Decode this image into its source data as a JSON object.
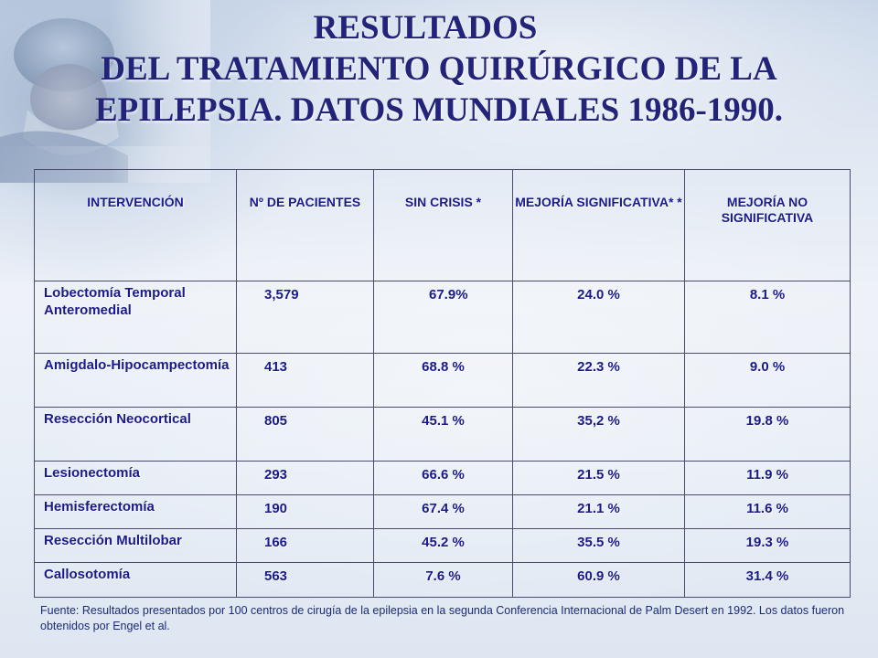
{
  "title": {
    "line1": "RESULTADOS",
    "line2": "DEL TRATAMIENTO QUIRÚRGICO DE LA",
    "line3": "EPILEPSIA. DATOS MUNDIALES 1986-1990."
  },
  "table": {
    "headers": [
      "INTERVENCIÓN",
      "Nº  DE PACIENTES",
      "SIN CRISIS *",
      "MEJORÍA SIGNIFICATIVA* *",
      "MEJORÍA NO SIGNIFICATIVA"
    ],
    "rows": [
      [
        "Lobectomía Temporal Anteromedial",
        "3,579",
        "67.9%",
        "24.0 %",
        "8.1 %"
      ],
      [
        "Amigdalo-Hipocampectomía",
        "413",
        "68.8 %",
        "22.3 %",
        "9.0 %"
      ],
      [
        "Resección Neocortical",
        "805",
        "45.1 %",
        "35,2 %",
        "19.8 %"
      ],
      [
        "Lesionectomía",
        "293",
        "66.6 %",
        "21.5 %",
        "11.9 %"
      ],
      [
        "Hemisferectomía",
        "190",
        "67.4 %",
        "21.1 %",
        "11.6 %"
      ],
      [
        "Resección Multilobar",
        "166",
        "45.2 %",
        "35.5 %",
        "19.3 %"
      ],
      [
        "Callosotomía",
        "563",
        "7.6 %",
        "60.9 %",
        "31.4 %"
      ]
    ]
  },
  "footer": {
    "text": "Fuente: Resultados presentados por 100 centros de cirugía de la epilepsia en la segunda  Conferencia Internacional de Palm Desert en 1992. Los datos fueron obtenidos por Engel et al."
  },
  "colors": {
    "title": "#23237a",
    "table_text": "#1a1a8c",
    "border": "#4b4b6e",
    "footer_text": "#1c2a78"
  },
  "background": {
    "image_icon": "surgeon-photo-icon"
  }
}
